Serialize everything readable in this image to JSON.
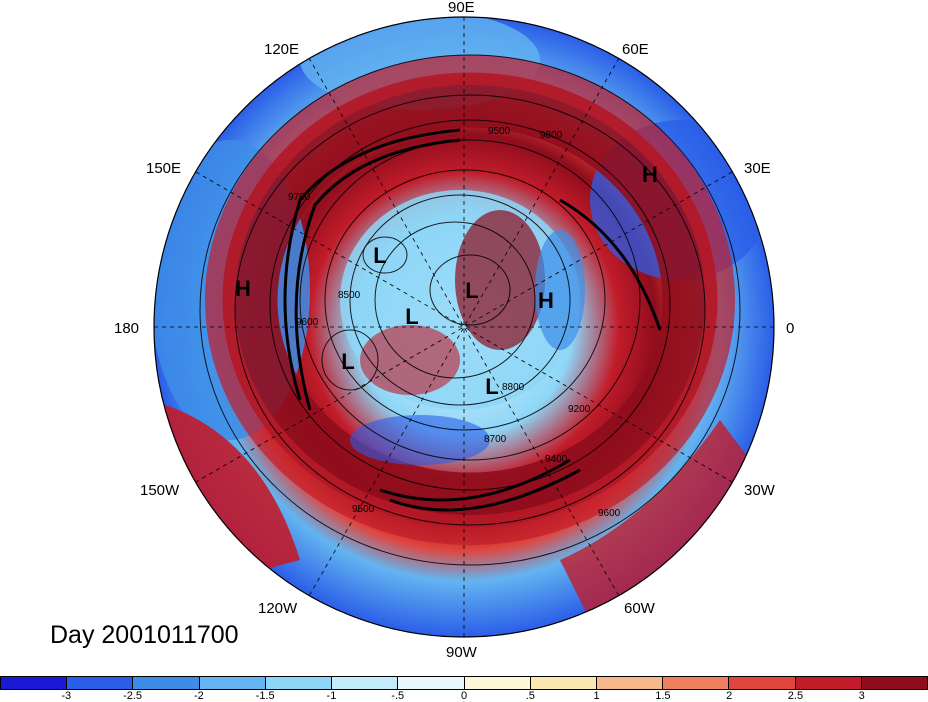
{
  "map": {
    "title": "Day 2001011700",
    "longitude_labels": {
      "top": "90E",
      "top_right": "60E",
      "right_upper": "30E",
      "right": "0",
      "right_lower": "30W",
      "bottom_right": "60W",
      "bottom": "90W",
      "bottom_left": "120W",
      "left_lower": "150W",
      "left": "180",
      "left_upper": "150E",
      "top_left": "120E"
    },
    "pressure_centers": [
      {
        "name": "high-1",
        "label": "H"
      },
      {
        "name": "high-2",
        "label": "H"
      },
      {
        "name": "high-3",
        "label": "H"
      },
      {
        "name": "low-1",
        "label": "L"
      },
      {
        "name": "low-2",
        "label": "L"
      },
      {
        "name": "low-3",
        "label": "L"
      },
      {
        "name": "low-4",
        "label": "L"
      },
      {
        "name": "low-5",
        "label": "L"
      }
    ],
    "contour_labels": [
      "9500",
      "9800",
      "9700",
      "9600",
      "8500",
      "8800",
      "9200",
      "9400",
      "9500",
      "9600",
      "8700"
    ],
    "colorbar": {
      "tick_labels": [
        "-3",
        "-2.5",
        "-2",
        "-1.5",
        "-1",
        "-.5",
        "0",
        ".5",
        "1",
        "1.5",
        "2",
        "2.5",
        "3"
      ],
      "colors": [
        "#1a1ad6",
        "#2b5ee8",
        "#3d8de8",
        "#63b4f0",
        "#8ed6f7",
        "#c2ecfb",
        "#eaf8fd",
        "#fdf6d8",
        "#fde7b0",
        "#f7b98a",
        "#ef8060",
        "#e0453e",
        "#c21c2a",
        "#8f0d1d"
      ]
    }
  }
}
